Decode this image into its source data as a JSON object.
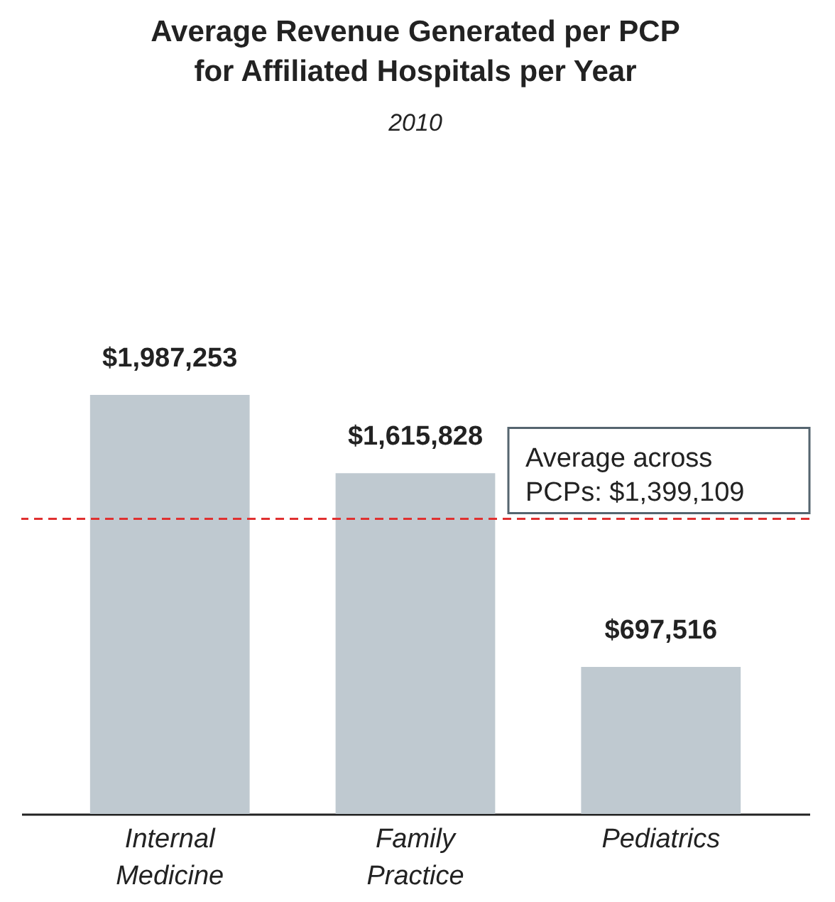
{
  "chart_data": {
    "type": "bar",
    "title": "Average Revenue Generated per PCP for Affiliated Hospitals per Year",
    "subtitle": "2010",
    "categories": [
      "Internal Medicine",
      "Family Practice",
      "Pediatrics"
    ],
    "values": [
      1987253,
      1615828,
      697516
    ],
    "value_labels": [
      "$1,987,253",
      "$1,615,828",
      "$697,516"
    ],
    "color": "#bfc9d0",
    "ref_lines": [
      {
        "axis": "y",
        "value": 1399109,
        "label": "Average across PCPs: $1,399,109",
        "color": "#e03030",
        "line_style": "dashed"
      }
    ],
    "grid": false
  }
}
